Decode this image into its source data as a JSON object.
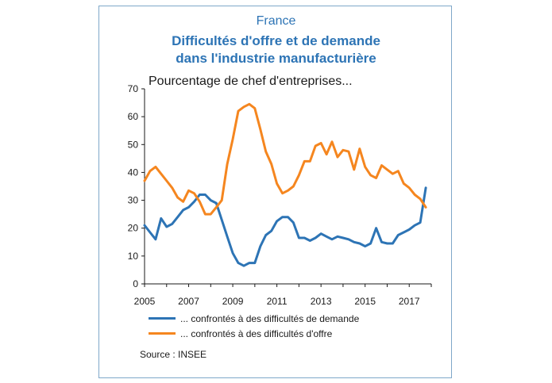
{
  "figure": {
    "country": "France",
    "title_line1": "Difficultés d'offre et de demande",
    "title_line2": "dans l'industrie manufacturière",
    "source": "Source : INSEE"
  },
  "chart_data": {
    "type": "line",
    "title": "Difficultés d'offre et de demande dans l'industrie manufacturière",
    "ylabel": "Pourcentage de chef d'entreprises...",
    "xlabel": "",
    "xlim": [
      2005,
      2018.0
    ],
    "ylim": [
      0,
      70
    ],
    "yticks": [
      0,
      10,
      20,
      30,
      40,
      50,
      60,
      70
    ],
    "xticks": [
      2005,
      2007,
      2009,
      2011,
      2013,
      2015,
      2017
    ],
    "grid": false,
    "legend_position": "bottom",
    "series": [
      {
        "name": "... confrontés à des difficultés de demande",
        "color": "#2d74b5",
        "x": [
          2005.0,
          2005.25,
          2005.5,
          2005.75,
          2006.0,
          2006.25,
          2006.5,
          2006.75,
          2007.0,
          2007.25,
          2007.5,
          2007.75,
          2008.0,
          2008.25,
          2008.5,
          2008.75,
          2009.0,
          2009.25,
          2009.5,
          2009.75,
          2010.0,
          2010.25,
          2010.5,
          2010.75,
          2011.0,
          2011.25,
          2011.5,
          2011.75,
          2012.0,
          2012.25,
          2012.5,
          2012.75,
          2013.0,
          2013.25,
          2013.5,
          2013.75,
          2014.0,
          2014.25,
          2014.5,
          2014.75,
          2015.0,
          2015.25,
          2015.5,
          2015.75,
          2016.0,
          2016.25,
          2016.5,
          2016.75,
          2017.0,
          2017.25,
          2017.5,
          2017.75
        ],
        "values": [
          21,
          18.5,
          16,
          23.5,
          20.5,
          21.5,
          24,
          26.5,
          27.5,
          29.5,
          32,
          32,
          30,
          29,
          23,
          17,
          11,
          7.5,
          6.5,
          7.5,
          7.5,
          13.5,
          17.5,
          19,
          22.5,
          24,
          24,
          22,
          16.5,
          16.5,
          15.5,
          16.5,
          18,
          17,
          16,
          17,
          16.5,
          16,
          15,
          14.5,
          13.5,
          14.5,
          20,
          15,
          14.5,
          14.5,
          17.5,
          18.5,
          19.5,
          21,
          22,
          34.5
        ]
      },
      {
        "name": "... confrontés à des difficultés d'offre",
        "color": "#f5861f",
        "x": [
          2005.0,
          2005.25,
          2005.5,
          2005.75,
          2006.0,
          2006.25,
          2006.5,
          2006.75,
          2007.0,
          2007.25,
          2007.5,
          2007.75,
          2008.0,
          2008.25,
          2008.5,
          2008.75,
          2009.0,
          2009.25,
          2009.5,
          2009.75,
          2010.0,
          2010.25,
          2010.5,
          2010.75,
          2011.0,
          2011.25,
          2011.5,
          2011.75,
          2012.0,
          2012.25,
          2012.5,
          2012.75,
          2013.0,
          2013.25,
          2013.5,
          2013.75,
          2014.0,
          2014.25,
          2014.5,
          2014.75,
          2015.0,
          2015.25,
          2015.5,
          2015.75,
          2016.0,
          2016.25,
          2016.5,
          2016.75,
          2017.0,
          2017.25,
          2017.5,
          2017.75
        ],
        "values": [
          37,
          40.5,
          42,
          39.5,
          37,
          34.5,
          31,
          29.5,
          33.5,
          32.5,
          29.5,
          25,
          25,
          27.5,
          30,
          43,
          52,
          62,
          63.5,
          64.5,
          63,
          55.5,
          47.5,
          43,
          36,
          32.5,
          33.5,
          35,
          39,
          44,
          44,
          49.5,
          50.5,
          46.5,
          51,
          45.5,
          48,
          47.5,
          41,
          48.5,
          42,
          39,
          38,
          42.5,
          41,
          39.5,
          40.5,
          36,
          34.5,
          32,
          30.5,
          27.5
        ]
      }
    ]
  }
}
